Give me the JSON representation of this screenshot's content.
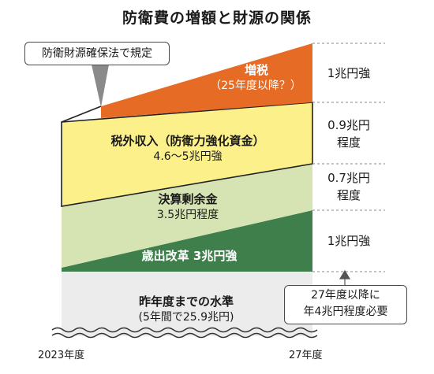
{
  "title": "防衛費の増額と財源の関係",
  "callouts": {
    "law": "防衛財源確保法で規定",
    "need_line1": "27年度以降に",
    "need_line2": "年4兆円程度必要"
  },
  "layers": {
    "tax": {
      "line1": "増税",
      "line2": "（25年度以降？）",
      "amount": "1兆円強"
    },
    "nontax": {
      "line1": "税外収入（防衛力強化資金）",
      "line2": "4.6～5兆円強",
      "amount_line1": "0.9兆円",
      "amount_line2": "程度"
    },
    "surplus": {
      "line1": "決算剰余金",
      "line2": "3.5兆円程度",
      "amount_line1": "0.7兆円",
      "amount_line2": "程度"
    },
    "reform": {
      "label": "歳出改革 3兆円強",
      "amount": "1兆円強"
    },
    "base": {
      "line1": "昨年度までの水準",
      "line2": "(5年間で25.9兆円)"
    }
  },
  "axis": {
    "start": "2023年度",
    "end": "27年度"
  },
  "colors": {
    "tax": "#e66b25",
    "nontax": "#fbf08a",
    "surplus": "#d6e3b2",
    "reform": "#3f7f4c",
    "base": "#ececec",
    "outline": "#222222"
  }
}
